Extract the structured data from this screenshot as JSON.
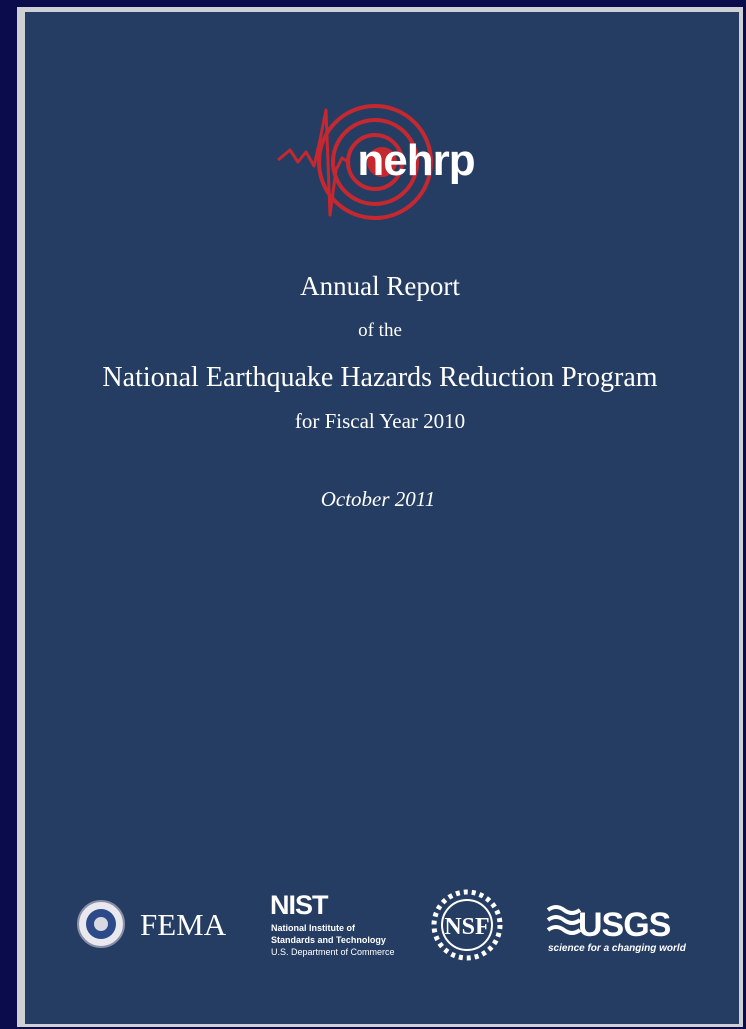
{
  "logo": {
    "text": "nehrp"
  },
  "title": {
    "line1": "Annual Report",
    "line2": "of the",
    "line3": "National Earthquake Hazards Reduction Program",
    "line4": "for Fiscal Year 2010"
  },
  "date": "October 2011",
  "agencies": [
    {
      "name": "FEMA"
    },
    {
      "name": "NIST",
      "lines": [
        "National Institute of",
        "Standards and Technology",
        "U.S. Department of Commerce"
      ]
    },
    {
      "name": "NSF"
    },
    {
      "name": "USGS",
      "tagline": "science for a changing world"
    }
  ]
}
